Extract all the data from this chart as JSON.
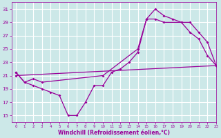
{
  "bg_color": "#cce8e8",
  "grid_color": "#ffffff",
  "line_color": "#990099",
  "xlabel": "Windchill (Refroidissement éolien,°C)",
  "ylim": [
    14,
    32
  ],
  "xlim": [
    -0.5,
    23
  ],
  "yticks": [
    15,
    17,
    19,
    21,
    23,
    25,
    27,
    29,
    31
  ],
  "xticks": [
    0,
    1,
    2,
    3,
    4,
    5,
    6,
    7,
    8,
    9,
    10,
    11,
    12,
    13,
    14,
    15,
    16,
    17,
    18,
    19,
    20,
    21,
    22,
    23
  ],
  "line1_x": [
    0,
    1,
    2,
    3,
    4,
    5,
    6,
    7,
    8,
    9,
    10,
    11,
    12,
    13,
    14,
    15,
    16,
    17,
    18,
    19,
    20,
    21,
    22,
    23
  ],
  "line1_y": [
    21.5,
    20.0,
    19.5,
    19.0,
    18.5,
    18.0,
    15.0,
    15.0,
    17.0,
    19.5,
    19.5,
    21.5,
    22.0,
    23.0,
    24.5,
    29.5,
    31.0,
    30.0,
    29.5,
    29.0,
    27.5,
    26.5,
    24.0,
    22.5
  ],
  "line2_x": [
    0,
    1,
    2,
    3,
    10,
    14,
    15,
    16,
    17,
    20,
    21,
    22,
    23
  ],
  "line2_y": [
    21.5,
    20.0,
    20.5,
    20.0,
    21.0,
    25.0,
    29.5,
    29.5,
    29.0,
    29.0,
    27.5,
    26.0,
    22.5
  ],
  "line3_x": [
    0,
    23
  ],
  "line3_y": [
    21.0,
    22.5
  ]
}
